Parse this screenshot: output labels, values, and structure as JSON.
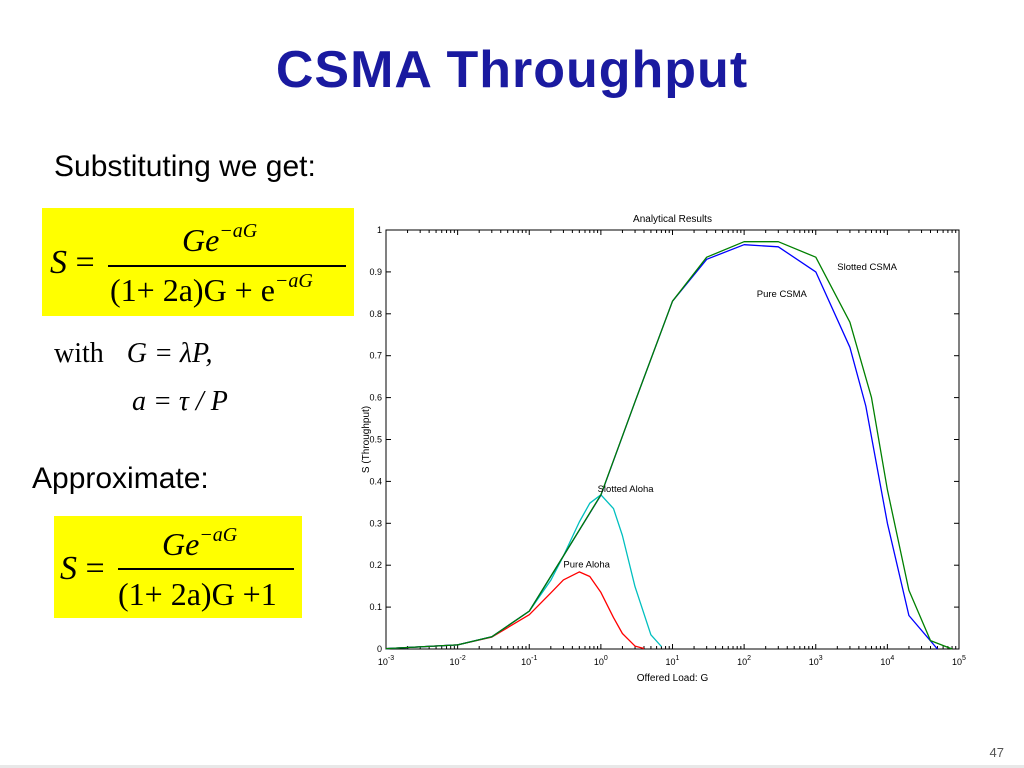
{
  "slide": {
    "title": "CSMA Throughput",
    "substituting": "Substituting we get:",
    "approximate": "Approximate:",
    "page_number": "47"
  },
  "equation1": {
    "lhs": "S",
    "eq": "=",
    "num_base": "Ge",
    "num_exp": "−aG",
    "den_main": "(1+ 2a)G + e",
    "den_exp": "−aG"
  },
  "with_clause": {
    "word": "with",
    "g_def": "G = λP,",
    "a_def": "a = τ / P"
  },
  "equation2": {
    "lhs": "S",
    "eq": "=",
    "num_base": "Ge",
    "num_exp": "−aG",
    "den_main": "(1+ 2a)G +1"
  },
  "chart_data": {
    "type": "line",
    "title": "Analytical Results",
    "xlabel": "Offered Load: G",
    "ylabel": "S (Throughput)",
    "xscale": "log",
    "xlim": [
      0.001,
      100000
    ],
    "ylim": [
      0,
      1
    ],
    "xticks": [
      {
        "base": "10",
        "exp": "-3"
      },
      {
        "base": "10",
        "exp": "-2"
      },
      {
        "base": "10",
        "exp": "-1"
      },
      {
        "base": "10",
        "exp": "0"
      },
      {
        "base": "10",
        "exp": "1"
      },
      {
        "base": "10",
        "exp": "2"
      },
      {
        "base": "10",
        "exp": "3"
      },
      {
        "base": "10",
        "exp": "4"
      },
      {
        "base": "10",
        "exp": "5"
      }
    ],
    "yticks": [
      "0",
      "0.1",
      "0.2",
      "0.3",
      "0.4",
      "0.5",
      "0.6",
      "0.7",
      "0.8",
      "0.9",
      "1"
    ],
    "grid": false,
    "series": [
      {
        "name": "Pure Aloha",
        "color": "#ff0000",
        "x": [
          0.001,
          0.01,
          0.03,
          0.1,
          0.2,
          0.3,
          0.5,
          0.7,
          1,
          1.5,
          2,
          3,
          4
        ],
        "y": [
          0.001,
          0.0098,
          0.0283,
          0.0819,
          0.134,
          0.165,
          0.184,
          0.173,
          0.135,
          0.075,
          0.037,
          0.007,
          0.0013
        ]
      },
      {
        "name": "Slotted Aloha",
        "color": "#00bfbf",
        "x": [
          0.001,
          0.01,
          0.03,
          0.1,
          0.2,
          0.3,
          0.5,
          0.7,
          1,
          1.5,
          2,
          3,
          5,
          7
        ],
        "y": [
          0.001,
          0.0099,
          0.0291,
          0.0905,
          0.164,
          0.222,
          0.303,
          0.348,
          0.368,
          0.335,
          0.271,
          0.149,
          0.034,
          0.006
        ]
      },
      {
        "name": "Pure CSMA",
        "color": "#0000ff",
        "x": [
          0.001,
          0.01,
          0.03,
          0.1,
          0.3,
          1,
          3,
          10,
          30,
          100,
          300,
          1000,
          3000,
          5000,
          10000,
          20000,
          50000
        ],
        "y": [
          0.001,
          0.0099,
          0.0291,
          0.0905,
          0.222,
          0.367,
          0.59,
          0.83,
          0.93,
          0.965,
          0.96,
          0.9,
          0.72,
          0.58,
          0.3,
          0.08,
          0.0
        ]
      },
      {
        "name": "Slotted CSMA",
        "color": "#008000",
        "x": [
          0.001,
          0.01,
          0.03,
          0.1,
          0.3,
          1,
          3,
          10,
          30,
          100,
          300,
          1000,
          3000,
          6000,
          10000,
          20000,
          40000,
          80000
        ],
        "y": [
          0.001,
          0.0099,
          0.0291,
          0.0905,
          0.222,
          0.368,
          0.59,
          0.83,
          0.935,
          0.972,
          0.972,
          0.935,
          0.78,
          0.6,
          0.38,
          0.14,
          0.02,
          0.0
        ]
      }
    ],
    "labels": [
      {
        "text": "Slotted CSMA",
        "series": 3
      },
      {
        "text": "Pure CSMA",
        "series": 2
      },
      {
        "text": "Slotted Aloha",
        "series": 1
      },
      {
        "text": "Pure Aloha",
        "series": 0
      }
    ]
  }
}
